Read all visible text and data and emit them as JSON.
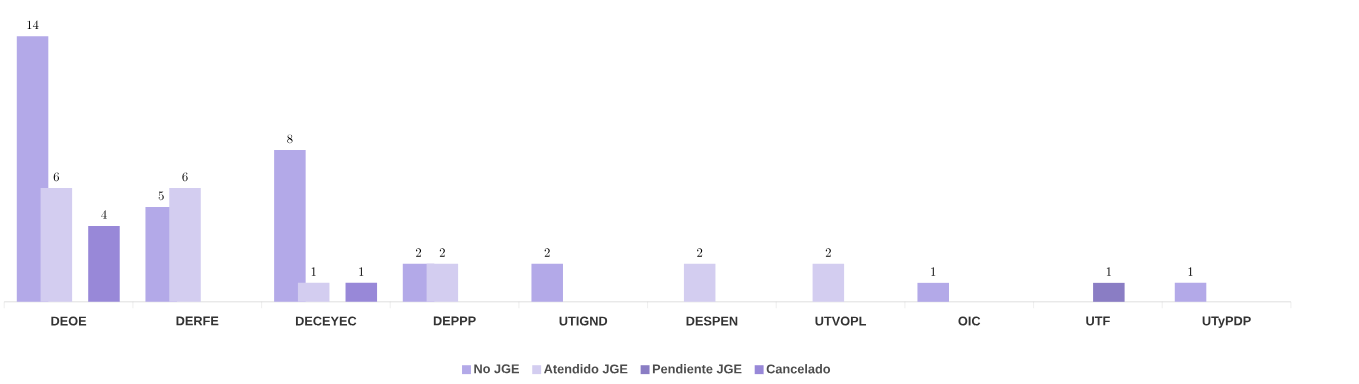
{
  "chart_data": {
    "type": "bar",
    "categories": [
      "DEOE",
      "DERFE",
      "DECEYEC",
      "DEPPP",
      "UTIGND",
      "DESPEN",
      "UTVOPL",
      "OIC",
      "UTF",
      "UTyPDP"
    ],
    "series": [
      {
        "name": "No JGE",
        "color": "#b3a9e8",
        "values": [
          14,
          5,
          8,
          2,
          2,
          null,
          null,
          1,
          null,
          1
        ]
      },
      {
        "name": "Atendido JGE",
        "color": "#d3cdf0",
        "values": [
          6,
          6,
          1,
          2,
          null,
          2,
          2,
          null,
          null,
          null
        ]
      },
      {
        "name": "Pendiente JGE",
        "color": "#8a7dc4",
        "values": [
          null,
          null,
          null,
          null,
          null,
          null,
          null,
          null,
          1,
          null
        ]
      },
      {
        "name": "Cancelado",
        "color": "#9888d8",
        "values": [
          4,
          null,
          1,
          null,
          null,
          null,
          null,
          null,
          null,
          null
        ]
      }
    ],
    "data_labels": true,
    "legend": "bottom"
  }
}
